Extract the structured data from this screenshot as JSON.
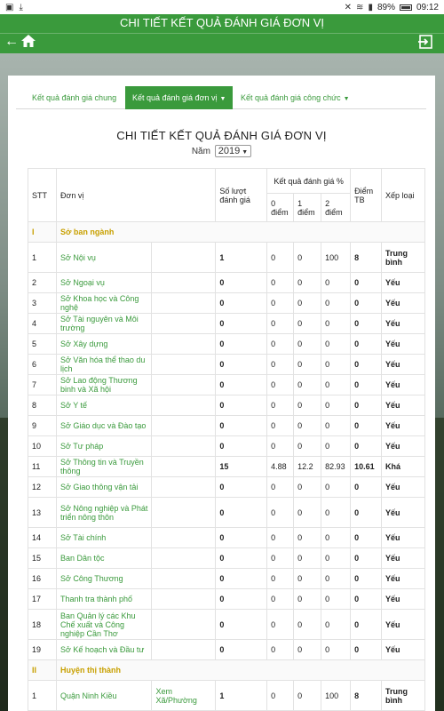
{
  "status_bar": {
    "left_icons": [
      "image-icon",
      "download-icon",
      "close-icon"
    ],
    "battery": "89%",
    "time": "09:12"
  },
  "app_bar": {
    "title": "CHI TIẾT KẾT QUẢ ĐÁNH GIÁ ĐƠN VỊ"
  },
  "tabs": [
    {
      "label": "Kết quả đánh giá chung",
      "active": false,
      "has_caret": false
    },
    {
      "label": "Kết quả đánh giá đơn vị",
      "active": true,
      "has_caret": true
    },
    {
      "label": "Kết quả đánh giá công chức",
      "active": false,
      "has_caret": true
    }
  ],
  "report": {
    "title": "CHI TIẾT KẾT QUẢ ĐÁNH GIÁ ĐƠN VỊ",
    "year_label": "Năm",
    "year_value": "2019"
  },
  "table": {
    "headers": {
      "stt": "STT",
      "don_vi": "Đơn vị",
      "so_luot": "Số lượt đánh giá",
      "ket_qua": "Kết quả đánh giá %",
      "k0": "0 điểm",
      "k1": "1 điểm",
      "k2": "2 điểm",
      "diem_tb": "Điểm TB",
      "xep_loai": "Xếp loại"
    },
    "sections": [
      {
        "stt": "I",
        "name": "Sở ban ngành",
        "rows": [
          {
            "stt": "1",
            "don_vi": "Sở Nội vụ",
            "xem": "",
            "so_luot": "1",
            "k0": "0",
            "k1": "0",
            "k2": "100",
            "tb": "8",
            "xl": "Trung bình"
          },
          {
            "stt": "2",
            "don_vi": "Sở Ngoại vụ",
            "xem": "",
            "so_luot": "0",
            "k0": "0",
            "k1": "0",
            "k2": "0",
            "tb": "0",
            "xl": "Yếu"
          },
          {
            "stt": "3",
            "don_vi": "Sở Khoa học và Công nghệ",
            "xem": "",
            "so_luot": "0",
            "k0": "0",
            "k1": "0",
            "k2": "0",
            "tb": "0",
            "xl": "Yếu"
          },
          {
            "stt": "4",
            "don_vi": "Sở Tài nguyên và Môi trường",
            "xem": "",
            "so_luot": "0",
            "k0": "0",
            "k1": "0",
            "k2": "0",
            "tb": "0",
            "xl": "Yếu"
          },
          {
            "stt": "5",
            "don_vi": "Sở Xây dựng",
            "xem": "",
            "so_luot": "0",
            "k0": "0",
            "k1": "0",
            "k2": "0",
            "tb": "0",
            "xl": "Yếu"
          },
          {
            "stt": "6",
            "don_vi": "Sở Văn hóa thể thao du lịch",
            "xem": "",
            "so_luot": "0",
            "k0": "0",
            "k1": "0",
            "k2": "0",
            "tb": "0",
            "xl": "Yếu"
          },
          {
            "stt": "7",
            "don_vi": "Sở Lao động Thương binh và Xã hội",
            "xem": "",
            "so_luot": "0",
            "k0": "0",
            "k1": "0",
            "k2": "0",
            "tb": "0",
            "xl": "Yếu"
          },
          {
            "stt": "8",
            "don_vi": "Sở Y tế",
            "xem": "",
            "so_luot": "0",
            "k0": "0",
            "k1": "0",
            "k2": "0",
            "tb": "0",
            "xl": "Yếu"
          },
          {
            "stt": "9",
            "don_vi": "Sở Giáo dục và Đào tạo",
            "xem": "",
            "so_luot": "0",
            "k0": "0",
            "k1": "0",
            "k2": "0",
            "tb": "0",
            "xl": "Yếu"
          },
          {
            "stt": "10",
            "don_vi": "Sở Tư pháp",
            "xem": "",
            "so_luot": "0",
            "k0": "0",
            "k1": "0",
            "k2": "0",
            "tb": "0",
            "xl": "Yếu"
          },
          {
            "stt": "11",
            "don_vi": "Sở Thông tin và Truyền thông",
            "xem": "",
            "so_luot": "15",
            "k0": "4.88",
            "k1": "12.2",
            "k2": "82.93",
            "tb": "10.61",
            "xl": "Khá"
          },
          {
            "stt": "12",
            "don_vi": "Sở Giao thông vận tải",
            "xem": "",
            "so_luot": "0",
            "k0": "0",
            "k1": "0",
            "k2": "0",
            "tb": "0",
            "xl": "Yếu"
          },
          {
            "stt": "13",
            "don_vi": "Sở Nông nghiệp và Phát triển nông thôn",
            "xem": "",
            "so_luot": "0",
            "k0": "0",
            "k1": "0",
            "k2": "0",
            "tb": "0",
            "xl": "Yếu"
          },
          {
            "stt": "14",
            "don_vi": "Sở Tài chính",
            "xem": "",
            "so_luot": "0",
            "k0": "0",
            "k1": "0",
            "k2": "0",
            "tb": "0",
            "xl": "Yếu"
          },
          {
            "stt": "15",
            "don_vi": "Ban Dân tộc",
            "xem": "",
            "so_luot": "0",
            "k0": "0",
            "k1": "0",
            "k2": "0",
            "tb": "0",
            "xl": "Yếu"
          },
          {
            "stt": "16",
            "don_vi": "Sở Công Thương",
            "xem": "",
            "so_luot": "0",
            "k0": "0",
            "k1": "0",
            "k2": "0",
            "tb": "0",
            "xl": "Yếu"
          },
          {
            "stt": "17",
            "don_vi": "Thanh tra thành phố",
            "xem": "",
            "so_luot": "0",
            "k0": "0",
            "k1": "0",
            "k2": "0",
            "tb": "0",
            "xl": "Yếu"
          },
          {
            "stt": "18",
            "don_vi": "Ban Quản lý các Khu Chế xuất và Công nghiệp Cần Thơ",
            "xem": "",
            "so_luot": "0",
            "k0": "0",
            "k1": "0",
            "k2": "0",
            "tb": "0",
            "xl": "Yếu"
          },
          {
            "stt": "19",
            "don_vi": "Sở Kế hoạch và Đầu tư",
            "xem": "",
            "so_luot": "0",
            "k0": "0",
            "k1": "0",
            "k2": "0",
            "tb": "0",
            "xl": "Yếu"
          }
        ]
      },
      {
        "stt": "II",
        "name": "Huyện thị thành",
        "rows": [
          {
            "stt": "1",
            "don_vi": "Quận Ninh Kiều",
            "xem": "Xem Xã/Phường",
            "so_luot": "1",
            "k0": "0",
            "k1": "0",
            "k2": "100",
            "tb": "8",
            "xl": "Trung bình"
          }
        ]
      }
    ]
  },
  "colors": {
    "brand_green": "#3a9a3c",
    "section_gold": "#c8a000"
  }
}
